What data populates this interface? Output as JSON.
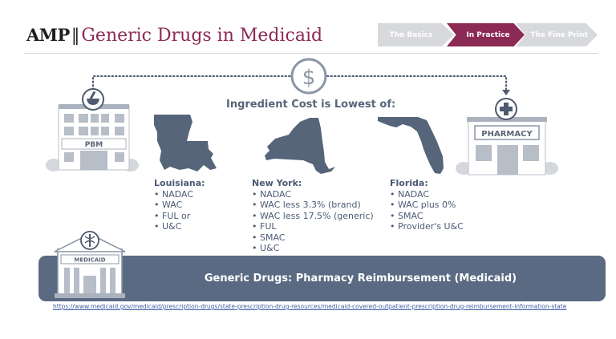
{
  "header": {
    "brand_amp": "AMP",
    "brand_separator": "‖",
    "title": "Generic Drugs in Medicaid"
  },
  "breadcrumbs": [
    {
      "label": "The Basics",
      "active": false
    },
    {
      "label": "In Practice",
      "active": true
    },
    {
      "label": "The Fine Print",
      "active": false
    }
  ],
  "colors": {
    "brand_maroon": "#8b2a54",
    "banner_slate": "#5a6a82",
    "icon_gray": "#8b96a6",
    "crumb_inactive": "#d7d9dc",
    "text": "#4a5a74"
  },
  "icons": {
    "flow_center": "dollar-icon",
    "pbm_badge": "mortar-pestle-icon",
    "pharmacy_badge": "medical-cross-icon",
    "medicaid_badge": "caduceus-icon"
  },
  "diagram": {
    "heading": "Ingredient Cost is Lowest of:",
    "pbm_label": "PBM",
    "pharmacy_label": "PHARMACY",
    "medicaid_label": "MEDICAID"
  },
  "states": [
    {
      "name": "Louisiana:",
      "items": [
        "NADAC",
        "WAC",
        "FUL or",
        "U&C"
      ]
    },
    {
      "name": "New York:",
      "items": [
        "NADAC",
        "WAC less 3.3% (brand)",
        "WAC less 17.5% (generic)",
        "FUL",
        "SMAC",
        "U&C"
      ]
    },
    {
      "name": "Florida:",
      "items": [
        "NADAC",
        "WAC plus 0%",
        "SMAC",
        "Provider's U&C"
      ]
    }
  ],
  "banner": {
    "text": "Generic Drugs: Pharmacy Reimbursement (Medicaid)"
  },
  "source": {
    "url": "https://www.medicaid.gov/medicaid/prescription-drugs/state-prescription-drug-resources/medicaid-covered-outpatient-prescription-drug-reimbursement-information-state"
  }
}
